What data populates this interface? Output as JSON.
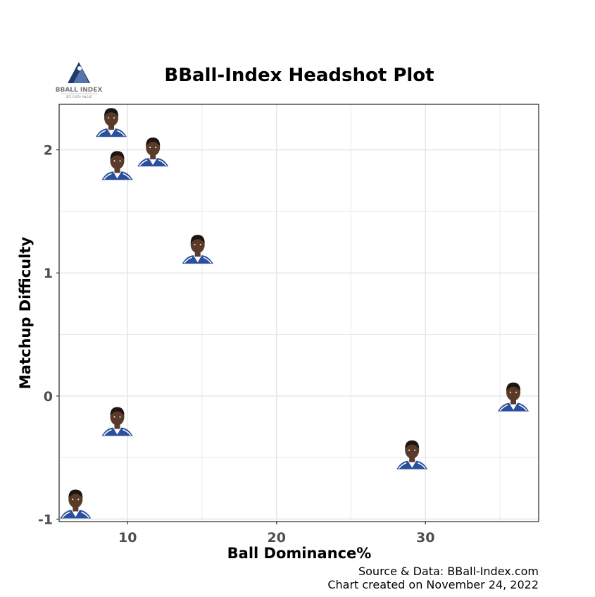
{
  "logo": {
    "text": "BBALL INDEX",
    "tagline": "SEE EVERY ANGLE"
  },
  "chart_data": {
    "type": "scatter",
    "title": "BBall-Index Headshot Plot",
    "xlabel": "Ball Dominance%",
    "ylabel": "Matchup Difficulty",
    "xlim": [
      5.4,
      37.6
    ],
    "ylim": [
      -1.02,
      2.37
    ],
    "xticks": [
      10,
      20,
      30
    ],
    "yticks": [
      -1,
      0,
      1,
      2
    ],
    "grid": true,
    "marker": "player-headshot",
    "points": [
      {
        "x": 8.9,
        "y": 2.18
      },
      {
        "x": 9.3,
        "y": 1.83
      },
      {
        "x": 11.7,
        "y": 1.94
      },
      {
        "x": 14.7,
        "y": 1.15
      },
      {
        "x": 9.3,
        "y": -0.25
      },
      {
        "x": 6.5,
        "y": -0.92
      },
      {
        "x": 29.1,
        "y": -0.52
      },
      {
        "x": 35.9,
        "y": -0.05
      }
    ],
    "colors": {
      "panel_border": "#333333",
      "grid": "#e6e6e6",
      "jersey": "#2a4f9c",
      "skin": "#5a3a28",
      "hair": "#1f1510"
    }
  },
  "caption": {
    "line1": "Source & Data: BBall-Index.com",
    "line2": "Chart created on November 24, 2022"
  }
}
